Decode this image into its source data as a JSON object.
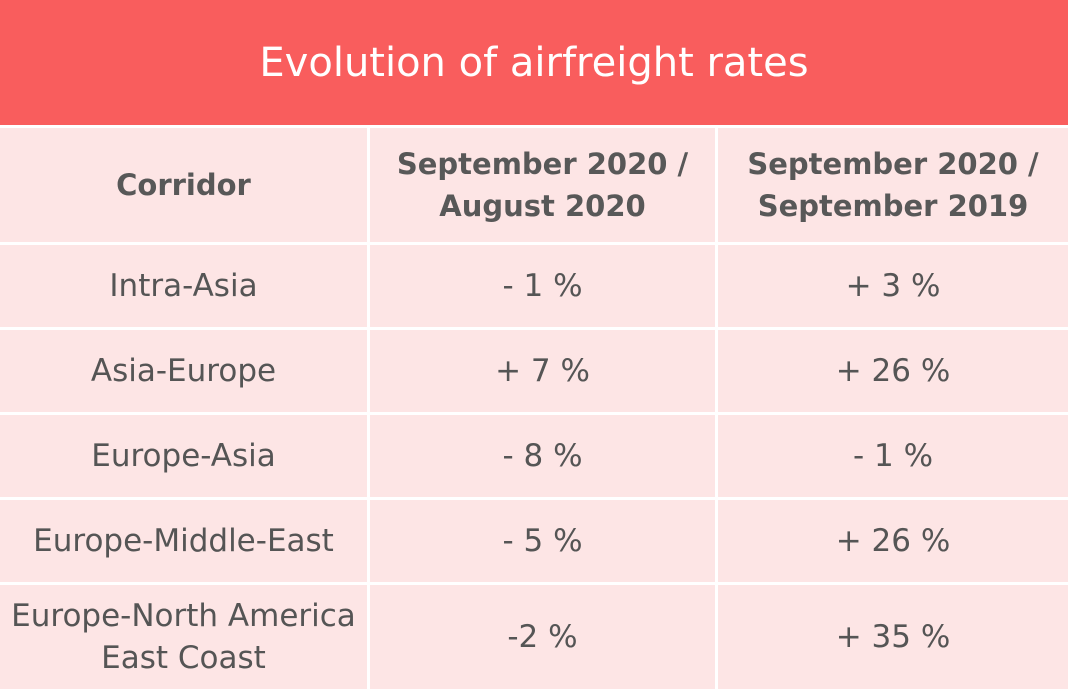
{
  "header": {
    "title": "Evolution of airfreight rates"
  },
  "table": {
    "columns": [
      [
        "Corridor"
      ],
      [
        "September 2020 /",
        "August 2020"
      ],
      [
        "September 2020 /",
        "September 2019"
      ]
    ],
    "rows": [
      [
        [
          "Intra-Asia"
        ],
        [
          "- 1 %"
        ],
        [
          "+ 3 %"
        ]
      ],
      [
        [
          "Asia-Europe"
        ],
        [
          "+ 7 %"
        ],
        [
          "+ 26 %"
        ]
      ],
      [
        [
          "Europe-Asia"
        ],
        [
          "- 8 %"
        ],
        [
          "- 1 %"
        ]
      ],
      [
        [
          "Europe-Middle-East"
        ],
        [
          "- 5 %"
        ],
        [
          "+ 26 %"
        ]
      ],
      [
        [
          "Europe-North America",
          "East Coast"
        ],
        [
          "-2 %"
        ],
        [
          "+ 35 %"
        ]
      ]
    ]
  }
}
